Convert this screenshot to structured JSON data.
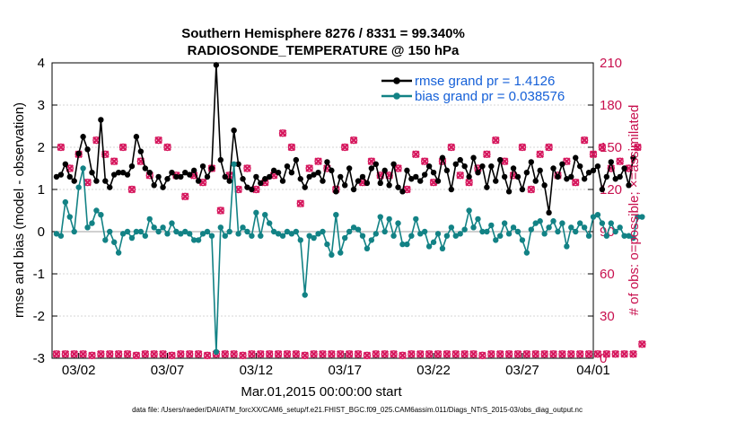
{
  "chart_data": {
    "type": "line",
    "title_line1": "Southern Hemisphere 8276 / 8331 = 99.340%",
    "title_line2": "RADIOSONDE_TEMPERATURE @ 150 hPa",
    "ylabel": "rmse and bias (model - observation)",
    "y2label": "# of obs: o=possible; ×=assimilated",
    "xlabel": "Mar.01,2015 00:00:00 start",
    "footnote": "data file: /Users/raeder/DAI/ATM_forcXX/CAM6_setup/f.e21.FHIST_BGC.f09_025.CAM6assim.011/Diags_NTrS_2015-03/obs_diag_output.nc",
    "ylim": [
      -3,
      4
    ],
    "y2lim": [
      0,
      210
    ],
    "xlim": [
      0.5,
      31
    ],
    "yticks": [
      "-3",
      "-2",
      "-1",
      "0",
      "1",
      "2",
      "3",
      "4"
    ],
    "y2ticks": [
      "0",
      "30",
      "60",
      "90",
      "120",
      "150",
      "180",
      "210"
    ],
    "xticks": [
      {
        "day": 2,
        "label": "03/02"
      },
      {
        "day": 7,
        "label": "03/07"
      },
      {
        "day": 12,
        "label": "03/12"
      },
      {
        "day": 17,
        "label": "03/17"
      },
      {
        "day": 22,
        "label": "03/22"
      },
      {
        "day": 27,
        "label": "03/27"
      },
      {
        "day": 32,
        "label": "04/01"
      }
    ],
    "step_days": 0.25,
    "start_day": 0.75,
    "series": [
      {
        "name": "rmse grand pr",
        "legend": "rmse grand pr = 1.4126",
        "color": "#000000",
        "values": [
          1.3,
          1.35,
          1.6,
          1.3,
          1.2,
          1.85,
          2.25,
          1.95,
          1.4,
          1.2,
          2.65,
          1.2,
          1.05,
          1.35,
          1.4,
          1.4,
          1.35,
          1.55,
          2.25,
          1.9,
          1.5,
          1.4,
          1.1,
          1.3,
          1.05,
          1.25,
          1.4,
          1.3,
          1.3,
          1.4,
          1.35,
          1.45,
          1.2,
          1.55,
          1.3,
          1.5,
          3.95,
          1.7,
          1.3,
          1.2,
          2.4,
          1.6,
          1.25,
          1.05,
          1.0,
          1.3,
          1.15,
          1.25,
          1.3,
          1.45,
          1.4,
          1.2,
          1.55,
          1.4,
          1.7,
          1.25,
          1.05,
          1.3,
          1.35,
          1.4,
          1.2,
          1.65,
          1.45,
          0.95,
          1.3,
          1.1,
          1.5,
          1.0,
          1.2,
          1.3,
          1.15,
          1.5,
          1.6,
          1.15,
          1.45,
          1.1,
          1.6,
          1.05,
          0.95,
          1.45,
          1.25,
          1.3,
          1.2,
          1.35,
          1.55,
          1.4,
          1.2,
          1.75,
          1.45,
          1.0,
          1.6,
          1.7,
          1.55,
          1.3,
          1.75,
          1.4,
          1.55,
          1.05,
          1.55,
          1.2,
          1.7,
          1.3,
          0.95,
          1.5,
          1.3,
          1.0,
          1.4,
          1.65,
          1.2,
          1.45,
          1.1,
          0.45,
          1.5,
          1.3,
          1.6,
          1.25,
          1.3,
          1.75,
          1.55,
          1.25,
          1.4,
          1.45,
          1.55,
          1.0,
          1.3,
          1.65,
          1.25,
          1.3,
          1.5,
          1.1,
          1.75
        ]
      },
      {
        "name": "bias grand pr",
        "legend": "bias grand pr = 0.038576",
        "color": "#128285",
        "values": [
          -0.05,
          -0.1,
          0.7,
          0.35,
          0.0,
          1.05,
          1.5,
          0.1,
          0.2,
          0.5,
          0.4,
          -0.2,
          0.0,
          -0.25,
          -0.5,
          -0.05,
          0.0,
          -0.15,
          0.0,
          0.0,
          -0.1,
          0.3,
          0.1,
          0.0,
          0.1,
          -0.05,
          0.2,
          0.0,
          -0.05,
          0.0,
          -0.05,
          -0.2,
          -0.2,
          -0.05,
          0.0,
          -0.1,
          -2.85,
          0.1,
          -0.1,
          0.0,
          1.6,
          -0.05,
          0.1,
          0.0,
          -0.1,
          0.45,
          -0.1,
          0.4,
          0.2,
          0.0,
          -0.05,
          -0.1,
          0.0,
          -0.05,
          0.0,
          -0.2,
          -1.5,
          -0.1,
          -0.15,
          -0.05,
          0.0,
          -0.3,
          -0.55,
          0.4,
          -0.5,
          -0.15,
          0.0,
          0.1,
          0.05,
          -0.1,
          -0.4,
          -0.2,
          -0.05,
          0.35,
          0.0,
          0.3,
          -0.1,
          0.2,
          -0.3,
          -0.3,
          -0.1,
          0.3,
          -0.05,
          0.0,
          -0.35,
          -0.25,
          -0.05,
          -0.4,
          -0.1,
          0.1,
          -0.1,
          -0.05,
          0.05,
          0.5,
          0.1,
          0.3,
          0.0,
          0.0,
          0.15,
          -0.2,
          -0.1,
          0.2,
          -0.05,
          0.1,
          0.0,
          -0.2,
          -0.5,
          0.05,
          0.2,
          0.25,
          -0.05,
          0.1,
          0.25,
          0.0,
          0.2,
          -0.35,
          0.1,
          0.0,
          0.2,
          0.1,
          -0.1,
          0.35,
          0.4,
          0.2,
          -0.1,
          0.2,
          0.0,
          0.1,
          -0.1,
          -0.1,
          -0.15,
          0.35,
          0.35
        ]
      }
    ],
    "obs_possible": {
      "name": "possible",
      "marker": "o",
      "color": "#d6185e",
      "values": [
        3,
        150,
        3,
        135,
        3,
        145,
        3,
        125,
        2,
        155,
        3,
        145,
        3,
        140,
        3,
        150,
        3,
        120,
        2,
        140,
        3,
        130,
        3,
        155,
        3,
        150,
        2,
        130,
        3,
        115,
        3,
        130,
        3,
        125,
        2,
        135,
        3,
        105,
        3,
        130,
        3,
        120,
        2,
        135,
        3,
        120,
        3,
        125,
        3,
        130,
        3,
        160,
        3,
        150,
        3,
        110,
        2,
        135,
        3,
        140,
        3,
        135,
        3,
        120,
        3,
        150,
        3,
        155,
        3,
        125,
        2,
        140,
        3,
        130,
        3,
        130,
        3,
        135,
        2,
        120,
        3,
        145,
        3,
        140,
        3,
        125,
        3,
        140,
        3,
        150,
        3,
        130,
        3,
        125,
        3,
        135,
        2,
        145,
        3,
        155,
        3,
        140,
        3,
        130,
        3,
        150,
        3,
        120,
        3,
        145,
        3,
        150,
        3,
        130,
        3,
        140,
        3,
        125,
        3,
        155,
        3,
        145,
        3,
        150,
        3,
        135,
        3,
        140,
        3,
        135,
        3,
        150,
        10
      ]
    },
    "obs_assimilated": {
      "name": "assimilated",
      "marker": "x",
      "color": "#d6185e",
      "values": [
        3,
        150,
        3,
        135,
        3,
        145,
        3,
        125,
        2,
        155,
        3,
        145,
        3,
        140,
        3,
        150,
        3,
        120,
        2,
        140,
        3,
        130,
        3,
        155,
        3,
        150,
        2,
        130,
        3,
        115,
        3,
        130,
        3,
        125,
        2,
        135,
        3,
        105,
        3,
        130,
        3,
        120,
        2,
        135,
        3,
        120,
        3,
        125,
        3,
        130,
        3,
        160,
        3,
        150,
        3,
        110,
        2,
        135,
        3,
        140,
        3,
        135,
        3,
        120,
        3,
        150,
        3,
        155,
        3,
        125,
        2,
        140,
        3,
        130,
        3,
        130,
        3,
        135,
        2,
        120,
        3,
        145,
        3,
        140,
        3,
        125,
        3,
        140,
        3,
        150,
        3,
        130,
        3,
        125,
        3,
        135,
        2,
        145,
        3,
        155,
        3,
        140,
        3,
        130,
        3,
        150,
        3,
        120,
        3,
        145,
        3,
        150,
        3,
        130,
        3,
        140,
        3,
        125,
        3,
        155,
        3,
        145,
        3,
        150,
        3,
        135,
        3,
        140,
        3,
        135,
        3,
        150,
        10
      ]
    }
  }
}
